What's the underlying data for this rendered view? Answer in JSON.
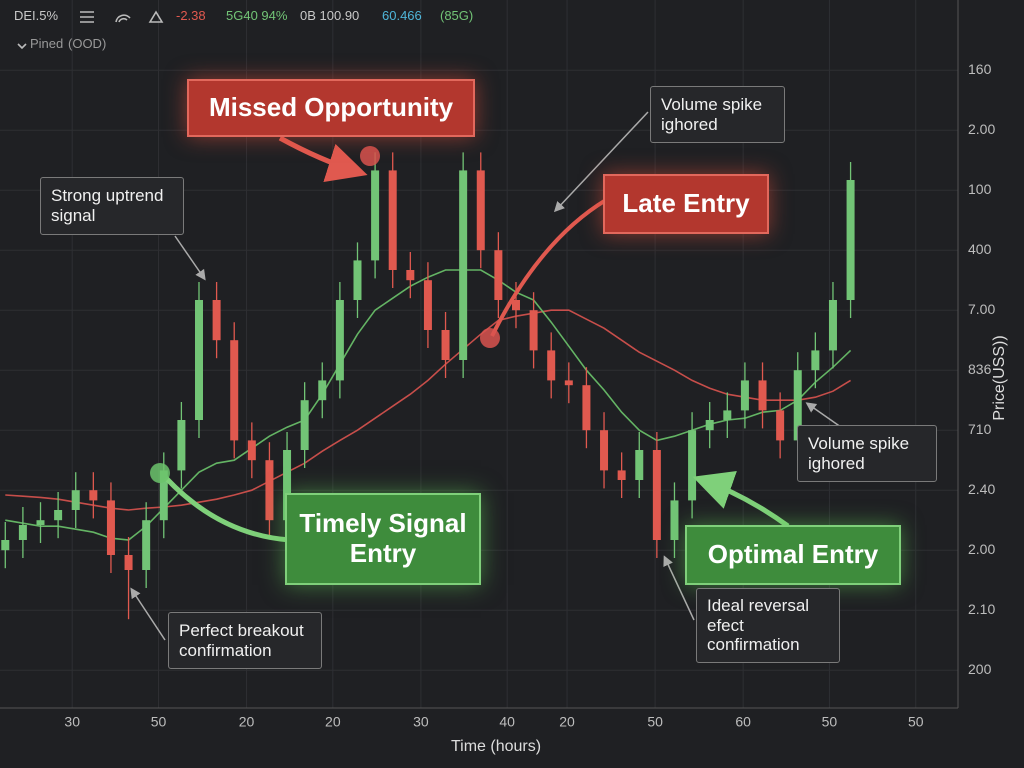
{
  "header": {
    "items": [
      "DEI.5%",
      "-2.38",
      "5G40 94%",
      "0B 100.90",
      "60.466",
      "(85G)"
    ],
    "pinned": "Pined",
    "pinned_note": "(OOD)"
  },
  "chart_data": {
    "type": "candlestick",
    "x_label": "Time (hours)",
    "y_label": "Price(USS))",
    "xlim": [
      -0.3,
      54.1
    ],
    "xticks": [
      {
        "value": 3.8,
        "label": "30"
      },
      {
        "value": 8.7,
        "label": "50"
      },
      {
        "value": 13.7,
        "label": "20"
      },
      {
        "value": 18.6,
        "label": "20"
      },
      {
        "value": 23.6,
        "label": "30"
      },
      {
        "value": 28.5,
        "label": "40"
      },
      {
        "value": 31.9,
        "label": "20"
      },
      {
        "value": 36.9,
        "label": "50"
      },
      {
        "value": 41.9,
        "label": "60"
      },
      {
        "value": 46.8,
        "label": "50"
      },
      {
        "value": 51.7,
        "label": "50"
      }
    ],
    "ylim": [
      -0.63,
      11.17
    ],
    "yticks": [
      {
        "value": 0,
        "label": "200"
      },
      {
        "value": 1,
        "label": "2.10"
      },
      {
        "value": 2,
        "label": "2.00"
      },
      {
        "value": 3,
        "label": "2.40"
      },
      {
        "value": 4,
        "label": "710"
      },
      {
        "value": 5,
        "label": "836"
      },
      {
        "value": 6,
        "label": "7.00"
      },
      {
        "value": 7,
        "label": "400"
      },
      {
        "value": 8,
        "label": "100"
      },
      {
        "value": 9,
        "label": "2.00"
      },
      {
        "value": 10,
        "label": "160"
      }
    ],
    "grid": true,
    "up_color": "#72c476",
    "down_color": "#e0594f",
    "open": [
      2.0,
      2.17,
      2.42,
      2.5,
      2.67,
      3.0,
      2.83,
      1.92,
      1.67,
      2.5,
      3.33,
      4.17,
      6.17,
      5.5,
      3.83,
      3.5,
      2.5,
      3.67,
      4.5,
      4.83,
      6.17,
      6.83,
      8.33,
      6.67,
      6.5,
      5.67,
      5.17,
      8.33,
      7.0,
      6.17,
      6.0,
      5.33,
      4.83,
      4.75,
      4.0,
      3.33,
      3.17,
      3.67,
      2.17,
      2.83,
      4.0,
      4.17,
      4.33,
      4.83,
      4.33,
      3.83,
      5.0,
      5.33,
      6.17
    ],
    "high": [
      2.47,
      2.72,
      2.8,
      2.97,
      3.3,
      3.3,
      3.13,
      2.22,
      2.8,
      3.63,
      4.47,
      6.47,
      6.47,
      5.8,
      4.13,
      3.8,
      3.97,
      4.8,
      5.13,
      6.47,
      7.13,
      8.63,
      8.63,
      6.97,
      6.8,
      5.97,
      8.63,
      8.63,
      7.3,
      6.47,
      6.3,
      5.63,
      5.13,
      5.05,
      4.3,
      3.63,
      3.97,
      3.97,
      3.13,
      4.3,
      4.47,
      4.63,
      5.13,
      5.13,
      4.63,
      5.3,
      5.63,
      6.47,
      8.47
    ],
    "low": [
      1.7,
      1.87,
      2.12,
      2.2,
      2.37,
      2.53,
      1.62,
      0.85,
      1.37,
      2.2,
      3.03,
      3.87,
      5.2,
      3.53,
      3.2,
      2.2,
      2.2,
      3.37,
      4.2,
      4.53,
      5.87,
      6.53,
      6.37,
      6.2,
      5.37,
      4.87,
      4.87,
      6.7,
      5.87,
      5.7,
      5.03,
      4.53,
      4.45,
      3.7,
      3.03,
      2.87,
      2.87,
      1.87,
      1.87,
      2.53,
      3.7,
      3.87,
      4.03,
      4.03,
      3.53,
      3.53,
      4.7,
      5.03,
      5.87
    ],
    "close": [
      2.17,
      2.42,
      2.5,
      2.67,
      3.0,
      2.83,
      1.92,
      1.67,
      2.5,
      3.33,
      4.17,
      6.17,
      5.5,
      3.83,
      3.5,
      2.5,
      3.67,
      4.5,
      4.83,
      6.17,
      6.83,
      8.33,
      6.67,
      6.5,
      5.67,
      5.17,
      8.33,
      7.0,
      6.17,
      6.0,
      5.33,
      4.83,
      4.75,
      4.0,
      3.33,
      3.17,
      3.67,
      2.17,
      2.83,
      4.0,
      4.17,
      4.33,
      4.83,
      4.33,
      3.83,
      5.0,
      5.33,
      6.17,
      8.17
    ],
    "series": [
      {
        "color": "#d9534f",
        "values": [
          2.92,
          2.9,
          2.88,
          2.85,
          2.8,
          2.75,
          2.7,
          2.67,
          2.7,
          2.72,
          2.75,
          2.8,
          2.85,
          2.92,
          3.0,
          3.15,
          3.3,
          3.45,
          3.65,
          3.83,
          4.0,
          4.2,
          4.4,
          4.6,
          4.83,
          5.1,
          5.35,
          5.6,
          5.83,
          5.9,
          5.95,
          6.0,
          6.0,
          5.85,
          5.7,
          5.5,
          5.3,
          5.15,
          5.0,
          4.83,
          4.7,
          4.6,
          4.55,
          4.5,
          4.5,
          4.5,
          4.55,
          4.65,
          4.83
        ]
      },
      {
        "color": "#6cc46c",
        "values": [
          2.5,
          2.45,
          2.4,
          2.4,
          2.35,
          2.3,
          2.2,
          2.17,
          2.4,
          2.7,
          3.0,
          3.3,
          3.45,
          3.5,
          3.7,
          3.9,
          4.05,
          4.17,
          4.6,
          5.1,
          5.6,
          6.0,
          6.2,
          6.4,
          6.55,
          6.67,
          6.67,
          6.67,
          6.5,
          6.3,
          6.17,
          5.8,
          5.4,
          5.0,
          4.67,
          4.3,
          4.0,
          3.83,
          3.9,
          4.0,
          4.1,
          4.17,
          4.2,
          4.3,
          4.33,
          4.5,
          4.8,
          5.05,
          5.33
        ]
      }
    ],
    "annotations": [
      {
        "lines": [
          "Missed Opportunity"
        ]
      },
      {
        "lines": [
          "Late Entry"
        ]
      },
      {
        "lines": [
          "Timely Signal",
          "Entry"
        ]
      },
      {
        "lines": [
          "Optimal Entry"
        ]
      },
      {
        "lines": [
          "Strong uptrend",
          "signal"
        ]
      },
      {
        "lines": [
          "Volume spike",
          "ighored"
        ]
      },
      {
        "lines": [
          "Volume spike",
          "ighored"
        ]
      },
      {
        "lines": [
          "Perfect breakout",
          "confirmation"
        ]
      },
      {
        "lines": [
          "Ideal reversal",
          "efect",
          "confirmation"
        ]
      }
    ]
  }
}
